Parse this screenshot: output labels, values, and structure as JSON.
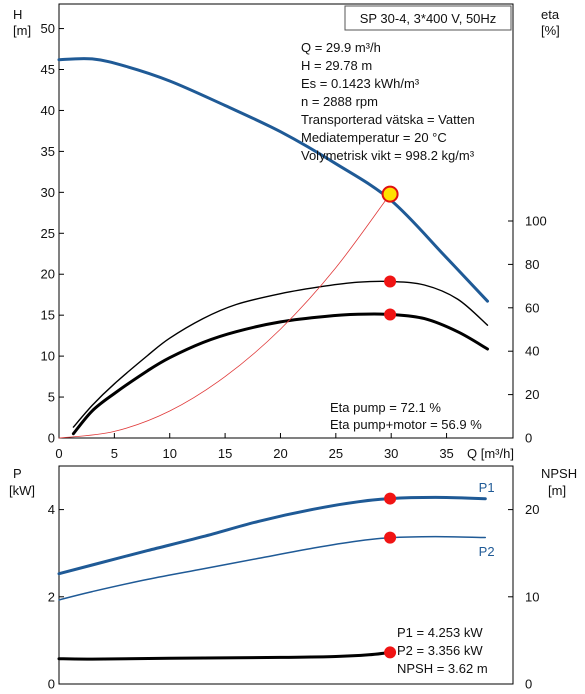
{
  "chart_data": [
    {
      "type": "line",
      "panel": "pump-curve",
      "title": "SP 30-4, 3*400 V, 50Hz",
      "y_label": "H",
      "y_unit": "[m]",
      "y2_label": "eta",
      "y2_unit": "[%]",
      "x_label": "Q [m³/h]",
      "xlim": [
        0,
        41
      ],
      "xticks": [
        0,
        5,
        10,
        15,
        20,
        25,
        30,
        35
      ],
      "ylim": [
        0,
        53
      ],
      "yticks": [
        0,
        5,
        10,
        15,
        20,
        25,
        30,
        35,
        40,
        45,
        50
      ],
      "y2lim": [
        0,
        200
      ],
      "y2ticks": [
        0,
        20,
        40,
        60,
        80,
        100
      ],
      "grid": false,
      "info_lines": [
        "Q = 29.9 m³/h",
        "H = 29.78 m",
        "Es = 0.1423 kWh/m³",
        "n = 2888 rpm",
        "Transporterad vätska = Vatten",
        "Mediatemperatur = 20 °C",
        "Volymetrisk vikt = 998.2 kg/m³"
      ],
      "eta_lines": [
        "Eta pump = 72.1 %",
        "Eta pump+motor = 56.9 %"
      ],
      "series": [
        {
          "key": "h",
          "axis": "y",
          "color": "#1f5a96",
          "width": 3,
          "points": [
            [
              0,
              46.2
            ],
            [
              3,
              46.3
            ],
            [
              6,
              45.4
            ],
            [
              10,
              43.6
            ],
            [
              15,
              40.6
            ],
            [
              20,
              37.4
            ],
            [
              25,
              33.5
            ],
            [
              30,
              29.0
            ],
            [
              35,
              22.0
            ],
            [
              38.7,
              16.7
            ]
          ]
        },
        {
          "key": "eta-pump",
          "axis": "y2",
          "color": "#000000",
          "width": 1.4,
          "points": [
            [
              1.3,
              5
            ],
            [
              3,
              15
            ],
            [
              5,
              25
            ],
            [
              8,
              38
            ],
            [
              10,
              46
            ],
            [
              13,
              55
            ],
            [
              16,
              61.5
            ],
            [
              20,
              66.5
            ],
            [
              24,
              70
            ],
            [
              27,
              71.8
            ],
            [
              30,
              72.1
            ],
            [
              33,
              70.5
            ],
            [
              36,
              64
            ],
            [
              38.7,
              52
            ]
          ]
        },
        {
          "key": "eta-total",
          "axis": "y2",
          "color": "#000000",
          "width": 3,
          "points": [
            [
              1.3,
              2
            ],
            [
              3,
              12.5
            ],
            [
              5,
              20.5
            ],
            [
              8,
              31
            ],
            [
              10,
              37
            ],
            [
              13,
              44
            ],
            [
              16,
              49
            ],
            [
              20,
              53.5
            ],
            [
              24,
              56
            ],
            [
              27,
              57
            ],
            [
              30,
              56.9
            ],
            [
              33,
              55
            ],
            [
              36,
              49
            ],
            [
              38.7,
              41
            ]
          ]
        },
        {
          "key": "system",
          "axis": "y",
          "color": "#e03a3a",
          "width": 0.8,
          "points": [
            [
              0,
              0
            ],
            [
              5,
              0.8
            ],
            [
              10,
              3.3
            ],
            [
              15,
              7.5
            ],
            [
              20,
              13.3
            ],
            [
              25,
              20.8
            ],
            [
              29.9,
              29.78
            ]
          ]
        }
      ],
      "markers": [
        {
          "x": 29.9,
          "y": 29.78,
          "axis": "y",
          "style": "duty"
        },
        {
          "x": 29.9,
          "y": 72.1,
          "axis": "y2",
          "style": "dot"
        },
        {
          "x": 29.9,
          "y": 56.9,
          "axis": "y2",
          "style": "dot"
        }
      ]
    },
    {
      "type": "line",
      "panel": "power-npsh",
      "y_label": "P",
      "y_unit": "[kW]",
      "y2_label": "NPSH",
      "y2_unit": "[m]",
      "xlim": [
        0,
        41
      ],
      "ylim": [
        0,
        5
      ],
      "yticks": [
        0,
        2,
        4
      ],
      "y2lim": [
        0,
        25
      ],
      "y2ticks": [
        0,
        10,
        20
      ],
      "grid": false,
      "info_lines": [
        "P1 = 4.253 kW",
        "P2 = 3.356 kW",
        "NPSH = 3.62 m"
      ],
      "series": [
        {
          "key": "p1",
          "name": "P1",
          "axis": "y",
          "color": "#1f5a96",
          "width": 3,
          "label_at": [
            37.9,
            4.52
          ],
          "points": [
            [
              0,
              2.53
            ],
            [
              3,
              2.73
            ],
            [
              8,
              3.06
            ],
            [
              13,
              3.38
            ],
            [
              18,
              3.73
            ],
            [
              23,
              4.01
            ],
            [
              27,
              4.18
            ],
            [
              29.9,
              4.253
            ],
            [
              34,
              4.28
            ],
            [
              38.5,
              4.25
            ]
          ]
        },
        {
          "key": "p2",
          "name": "P2",
          "axis": "y",
          "color": "#1f5a96",
          "width": 1.5,
          "points": [
            [
              0,
              1.93
            ],
            [
              3,
              2.12
            ],
            [
              8,
              2.4
            ],
            [
              13,
              2.64
            ],
            [
              18,
              2.88
            ],
            [
              23,
              3.12
            ],
            [
              27,
              3.28
            ],
            [
              29.9,
              3.356
            ],
            [
              34,
              3.38
            ],
            [
              38.5,
              3.36
            ]
          ],
          "label_at": [
            37.9,
            3.05
          ]
        },
        {
          "key": "npsh",
          "axis": "y2",
          "color": "#000000",
          "width": 3,
          "points": [
            [
              0,
              2.9
            ],
            [
              3,
              2.85
            ],
            [
              10,
              2.95
            ],
            [
              20,
              3.05
            ],
            [
              25,
              3.15
            ],
            [
              28,
              3.35
            ],
            [
              29.9,
              3.62
            ]
          ]
        }
      ],
      "markers": [
        {
          "x": 29.9,
          "y": 4.253,
          "axis": "y",
          "style": "dot"
        },
        {
          "x": 29.9,
          "y": 3.356,
          "axis": "y",
          "style": "dot"
        },
        {
          "x": 29.9,
          "y": 3.62,
          "axis": "y2",
          "style": "dot"
        }
      ]
    }
  ]
}
